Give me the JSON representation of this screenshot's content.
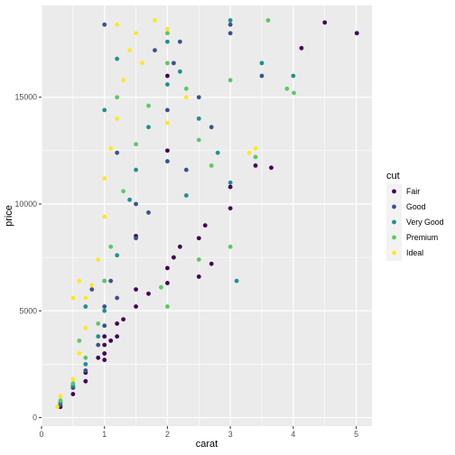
{
  "chart_data": {
    "type": "scatter",
    "title": "",
    "xlabel": "carat",
    "ylabel": "price",
    "xlim": [
      0,
      5.25
    ],
    "ylim": [
      -400,
      19300
    ],
    "x_ticks": [
      0,
      1,
      2,
      3,
      4,
      5
    ],
    "y_ticks": [
      0,
      5000,
      10000,
      15000
    ],
    "x_tick_labels": [
      "0",
      "1",
      "2",
      "3",
      "4",
      "5"
    ],
    "y_tick_labels": [
      "0",
      "5000",
      "10000",
      "15000"
    ],
    "grid": true,
    "background": "#ebebeb",
    "legend": {
      "title": "cut",
      "position": "right",
      "entries": [
        {
          "label": "Fair",
          "color": "#440154"
        },
        {
          "label": "Good",
          "color": "#3b528b"
        },
        {
          "label": "Very Good",
          "color": "#21908c"
        },
        {
          "label": "Premium",
          "color": "#5dc863"
        },
        {
          "label": "Ideal",
          "color": "#fde725"
        }
      ]
    },
    "series": [
      {
        "name": "Fair",
        "color": "#440154",
        "points": [
          [
            0.3,
            500
          ],
          [
            0.5,
            1100
          ],
          [
            0.7,
            1700
          ],
          [
            0.7,
            2100
          ],
          [
            0.9,
            2800
          ],
          [
            1.0,
            3000
          ],
          [
            1.0,
            3400
          ],
          [
            1.0,
            3800
          ],
          [
            1.1,
            3600
          ],
          [
            1.2,
            4400
          ],
          [
            1.3,
            4600
          ],
          [
            1.5,
            5200
          ],
          [
            1.5,
            6000
          ],
          [
            1.7,
            5800
          ],
          [
            2.0,
            6300
          ],
          [
            2.0,
            7000
          ],
          [
            2.1,
            7500
          ],
          [
            2.2,
            8000
          ],
          [
            2.5,
            8400
          ],
          [
            2.5,
            6600
          ],
          [
            2.6,
            9000
          ],
          [
            2.7,
            7200
          ],
          [
            3.0,
            9800
          ],
          [
            3.0,
            10800
          ],
          [
            3.4,
            11800
          ],
          [
            3.65,
            11700
          ],
          [
            4.13,
            17300
          ],
          [
            4.5,
            18500
          ],
          [
            5.01,
            18000
          ],
          [
            1.2,
            3800
          ],
          [
            0.5,
            1400
          ],
          [
            1.0,
            2700
          ],
          [
            2.0,
            16000
          ],
          [
            1.5,
            8500
          ],
          [
            2.0,
            12500
          ]
        ]
      },
      {
        "name": "Good",
        "color": "#3b528b",
        "points": [
          [
            0.3,
            600
          ],
          [
            0.5,
            1400
          ],
          [
            0.7,
            2200
          ],
          [
            0.9,
            3400
          ],
          [
            1.0,
            4300
          ],
          [
            1.0,
            5200
          ],
          [
            1.1,
            6400
          ],
          [
            1.2,
            5600
          ],
          [
            1.5,
            8400
          ],
          [
            1.5,
            10000
          ],
          [
            1.7,
            9600
          ],
          [
            2.0,
            12000
          ],
          [
            2.0,
            14400
          ],
          [
            2.1,
            16600
          ],
          [
            2.2,
            17600
          ],
          [
            2.5,
            15000
          ],
          [
            2.7,
            13600
          ],
          [
            3.0,
            18400
          ],
          [
            3.0,
            18000
          ],
          [
            3.5,
            16000
          ],
          [
            2.3,
            11600
          ],
          [
            1.8,
            17200
          ],
          [
            1.0,
            18400
          ],
          [
            1.2,
            12400
          ],
          [
            0.8,
            6000
          ]
        ]
      },
      {
        "name": "Very Good",
        "color": "#21908c",
        "points": [
          [
            0.3,
            700
          ],
          [
            0.5,
            1500
          ],
          [
            0.7,
            2500
          ],
          [
            0.9,
            3800
          ],
          [
            1.0,
            5000
          ],
          [
            1.0,
            6400
          ],
          [
            1.2,
            7600
          ],
          [
            1.4,
            10200
          ],
          [
            1.5,
            11600
          ],
          [
            1.7,
            13600
          ],
          [
            2.0,
            15600
          ],
          [
            2.0,
            17600
          ],
          [
            2.2,
            16200
          ],
          [
            2.5,
            14000
          ],
          [
            2.8,
            12400
          ],
          [
            3.0,
            11000
          ],
          [
            3.1,
            6400
          ],
          [
            3.0,
            18600
          ],
          [
            3.5,
            16600
          ],
          [
            4.0,
            16000
          ],
          [
            1.0,
            14400
          ],
          [
            1.2,
            16800
          ],
          [
            2.3,
            10400
          ],
          [
            0.7,
            5200
          ]
        ]
      },
      {
        "name": "Premium",
        "color": "#5dc863",
        "points": [
          [
            0.3,
            800
          ],
          [
            0.5,
            1600
          ],
          [
            0.7,
            2800
          ],
          [
            0.9,
            4400
          ],
          [
            1.0,
            6400
          ],
          [
            1.1,
            8000
          ],
          [
            1.3,
            10600
          ],
          [
            1.5,
            12800
          ],
          [
            1.7,
            14600
          ],
          [
            2.0,
            16600
          ],
          [
            2.0,
            18000
          ],
          [
            2.3,
            15400
          ],
          [
            2.5,
            13000
          ],
          [
            2.7,
            11800
          ],
          [
            3.0,
            8000
          ],
          [
            3.0,
            15800
          ],
          [
            3.4,
            12200
          ],
          [
            3.6,
            18600
          ],
          [
            3.9,
            15400
          ],
          [
            4.01,
            15200
          ],
          [
            2.0,
            5200
          ],
          [
            1.9,
            6100
          ],
          [
            0.6,
            3600
          ],
          [
            1.2,
            15000
          ],
          [
            2.5,
            7400
          ]
        ]
      },
      {
        "name": "Ideal",
        "color": "#fde725",
        "points": [
          [
            0.25,
            500
          ],
          [
            0.3,
            1000
          ],
          [
            0.5,
            1800
          ],
          [
            0.6,
            3000
          ],
          [
            0.7,
            4200
          ],
          [
            0.7,
            5600
          ],
          [
            0.8,
            6200
          ],
          [
            0.9,
            7400
          ],
          [
            1.0,
            9400
          ],
          [
            1.0,
            11200
          ],
          [
            1.1,
            12600
          ],
          [
            1.2,
            14000
          ],
          [
            1.3,
            15800
          ],
          [
            1.4,
            17200
          ],
          [
            1.5,
            18000
          ],
          [
            1.6,
            16600
          ],
          [
            1.8,
            18600
          ],
          [
            2.0,
            18200
          ],
          [
            2.0,
            13800
          ],
          [
            2.3,
            15000
          ],
          [
            3.3,
            12400
          ],
          [
            3.4,
            12600
          ],
          [
            0.6,
            6400
          ],
          [
            0.5,
            5600
          ],
          [
            1.2,
            18400
          ]
        ]
      }
    ]
  }
}
